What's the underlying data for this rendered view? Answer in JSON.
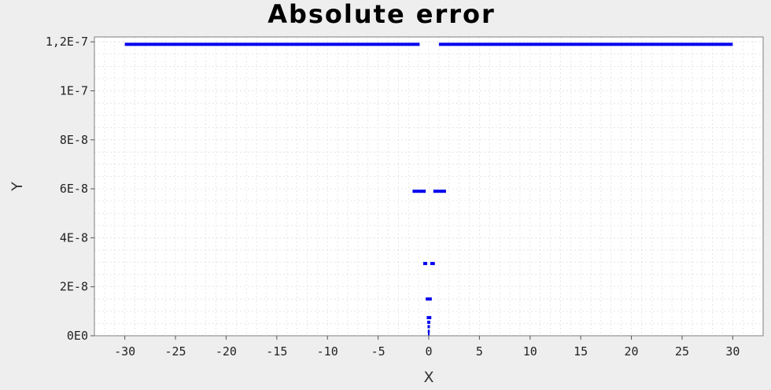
{
  "chart_data": {
    "type": "scatter",
    "title": "Absolute error",
    "xlabel": "X",
    "ylabel": "Y",
    "xlim": [
      -33,
      33
    ],
    "ylim": [
      0,
      1.22e-07
    ],
    "x_ticks": [
      -30,
      -25,
      -20,
      -15,
      -10,
      -5,
      0,
      5,
      10,
      15,
      20,
      25,
      30
    ],
    "x_tick_labels": [
      "-30",
      "-25",
      "-20",
      "-15",
      "-10",
      "-5",
      "0",
      "5",
      "10",
      "15",
      "20",
      "25",
      "30"
    ],
    "y_ticks": [
      0,
      2e-08,
      4e-08,
      6e-08,
      8e-08,
      1e-07,
      1.2e-07
    ],
    "y_tick_labels": [
      "0E0",
      "2E-8",
      "4E-8",
      "6E-8",
      "8E-8",
      "1E-7",
      "1,2E-7"
    ],
    "grid": true,
    "legend": "none",
    "series_color": "#0000ee",
    "segments": [
      {
        "x_start": -30,
        "x_end": -0.9,
        "y": 1.19e-07
      },
      {
        "x_start": 1.0,
        "x_end": 30,
        "y": 1.19e-07
      },
      {
        "x_start": -1.6,
        "x_end": -0.3,
        "y": 5.9e-08
      },
      {
        "x_start": 0.45,
        "x_end": 1.7,
        "y": 5.9e-08
      },
      {
        "x_start": -0.55,
        "x_end": -0.15,
        "y": 2.95e-08
      },
      {
        "x_start": 0.15,
        "x_end": 0.6,
        "y": 2.95e-08
      },
      {
        "x_start": -0.3,
        "x_end": 0.3,
        "y": 1.5e-08
      },
      {
        "x_start": -0.2,
        "x_end": 0.25,
        "y": 7.4e-09
      },
      {
        "x_start": -0.15,
        "x_end": 0.15,
        "y": 5.5e-09
      },
      {
        "x_start": -0.12,
        "x_end": 0.12,
        "y": 3.7e-09
      },
      {
        "x_start": -0.1,
        "x_end": 0.1,
        "y": 1.8e-09
      },
      {
        "x_start": -0.08,
        "x_end": 0.08,
        "y": 5e-10
      }
    ]
  }
}
